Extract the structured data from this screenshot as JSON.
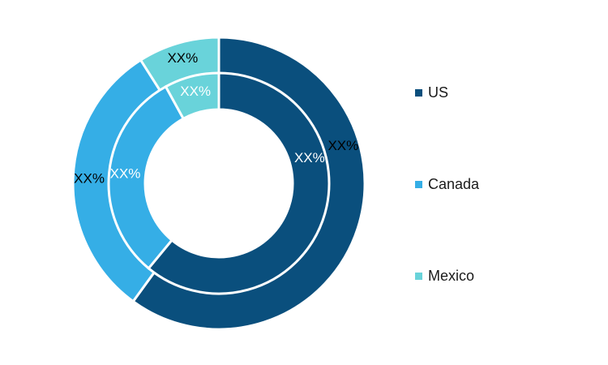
{
  "chart_data": {
    "type": "pie",
    "variant": "nested-donut",
    "categories": [
      "US",
      "Canada",
      "Mexico"
    ],
    "colors": {
      "US": "#0a4f7d",
      "Canada": "#35aee6",
      "Mexico": "#69d3da"
    },
    "series": [
      {
        "ring": "outer",
        "values": [
          60,
          31,
          9
        ],
        "labels": [
          "XX%",
          "XX%",
          "XX%"
        ]
      },
      {
        "ring": "inner",
        "values": [
          61,
          31,
          8
        ],
        "labels": [
          "XX%",
          "XX%",
          "XX%"
        ]
      }
    ],
    "legend": {
      "placement": "right",
      "entries": [
        "US",
        "Canada",
        "Mexico"
      ]
    }
  }
}
